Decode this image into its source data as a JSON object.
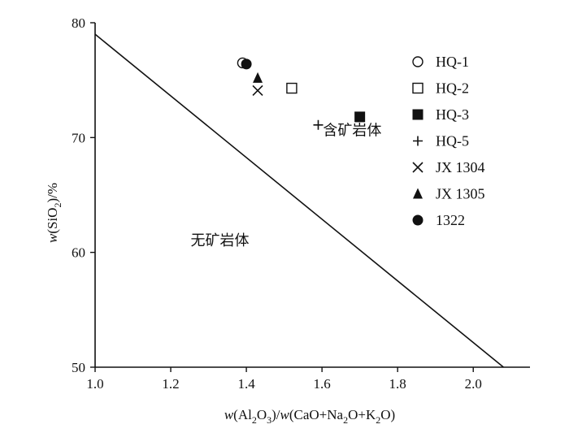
{
  "chart_data": {
    "type": "scatter",
    "xlabel_parts": {
      "w1": "w",
      "t1": "(Al",
      "s1": "2",
      "t2": "O",
      "s2": "3",
      "t3": ")/",
      "w2": "w",
      "t4": "(CaO+Na",
      "s3": "2",
      "t5": "O+K",
      "s4": "2",
      "t6": "O)"
    },
    "ylabel_parts": {
      "w": "w",
      "t1": "(SiO",
      "s": "2",
      "t2": ")/%"
    },
    "xlim": [
      1.0,
      2.15
    ],
    "ylim": [
      50,
      80
    ],
    "x_ticks": [
      1.0,
      1.2,
      1.4,
      1.6,
      1.8,
      2.0
    ],
    "x_tick_labels": [
      "1.0",
      "1.2",
      "1.4",
      "1.6",
      "1.8",
      "2.0"
    ],
    "y_ticks": [
      50,
      60,
      70,
      80
    ],
    "y_tick_labels": [
      "50",
      "60",
      "70",
      "80"
    ],
    "boundary_line": {
      "x": [
        1.0,
        2.08
      ],
      "y": [
        79,
        50
      ]
    },
    "regions": [
      {
        "label": "含矿岩体",
        "x": 1.68,
        "y": 70.2
      },
      {
        "label": "无矿岩体",
        "x": 1.33,
        "y": 60.6
      }
    ],
    "series": [
      {
        "name": "HQ-1",
        "marker": "open-circle",
        "x": [
          1.39
        ],
        "y": [
          76.5
        ]
      },
      {
        "name": "HQ-2",
        "marker": "open-square",
        "x": [
          1.52
        ],
        "y": [
          74.3
        ]
      },
      {
        "name": "HQ-3",
        "marker": "filled-square",
        "x": [
          1.7
        ],
        "y": [
          71.8
        ]
      },
      {
        "name": "HQ-5",
        "marker": "plus",
        "x": [
          1.59
        ],
        "y": [
          71.1
        ]
      },
      {
        "name": "JX 1304",
        "marker": "cross",
        "x": [
          1.43
        ],
        "y": [
          74.1
        ]
      },
      {
        "name": "JX 1305",
        "marker": "filled-triangle",
        "x": [
          1.43
        ],
        "y": [
          75.2
        ]
      },
      {
        "name": "1322",
        "marker": "filled-circle",
        "x": [
          1.4
        ],
        "y": [
          76.4
        ]
      }
    ],
    "legend_placement": "top-right",
    "grid": false
  }
}
